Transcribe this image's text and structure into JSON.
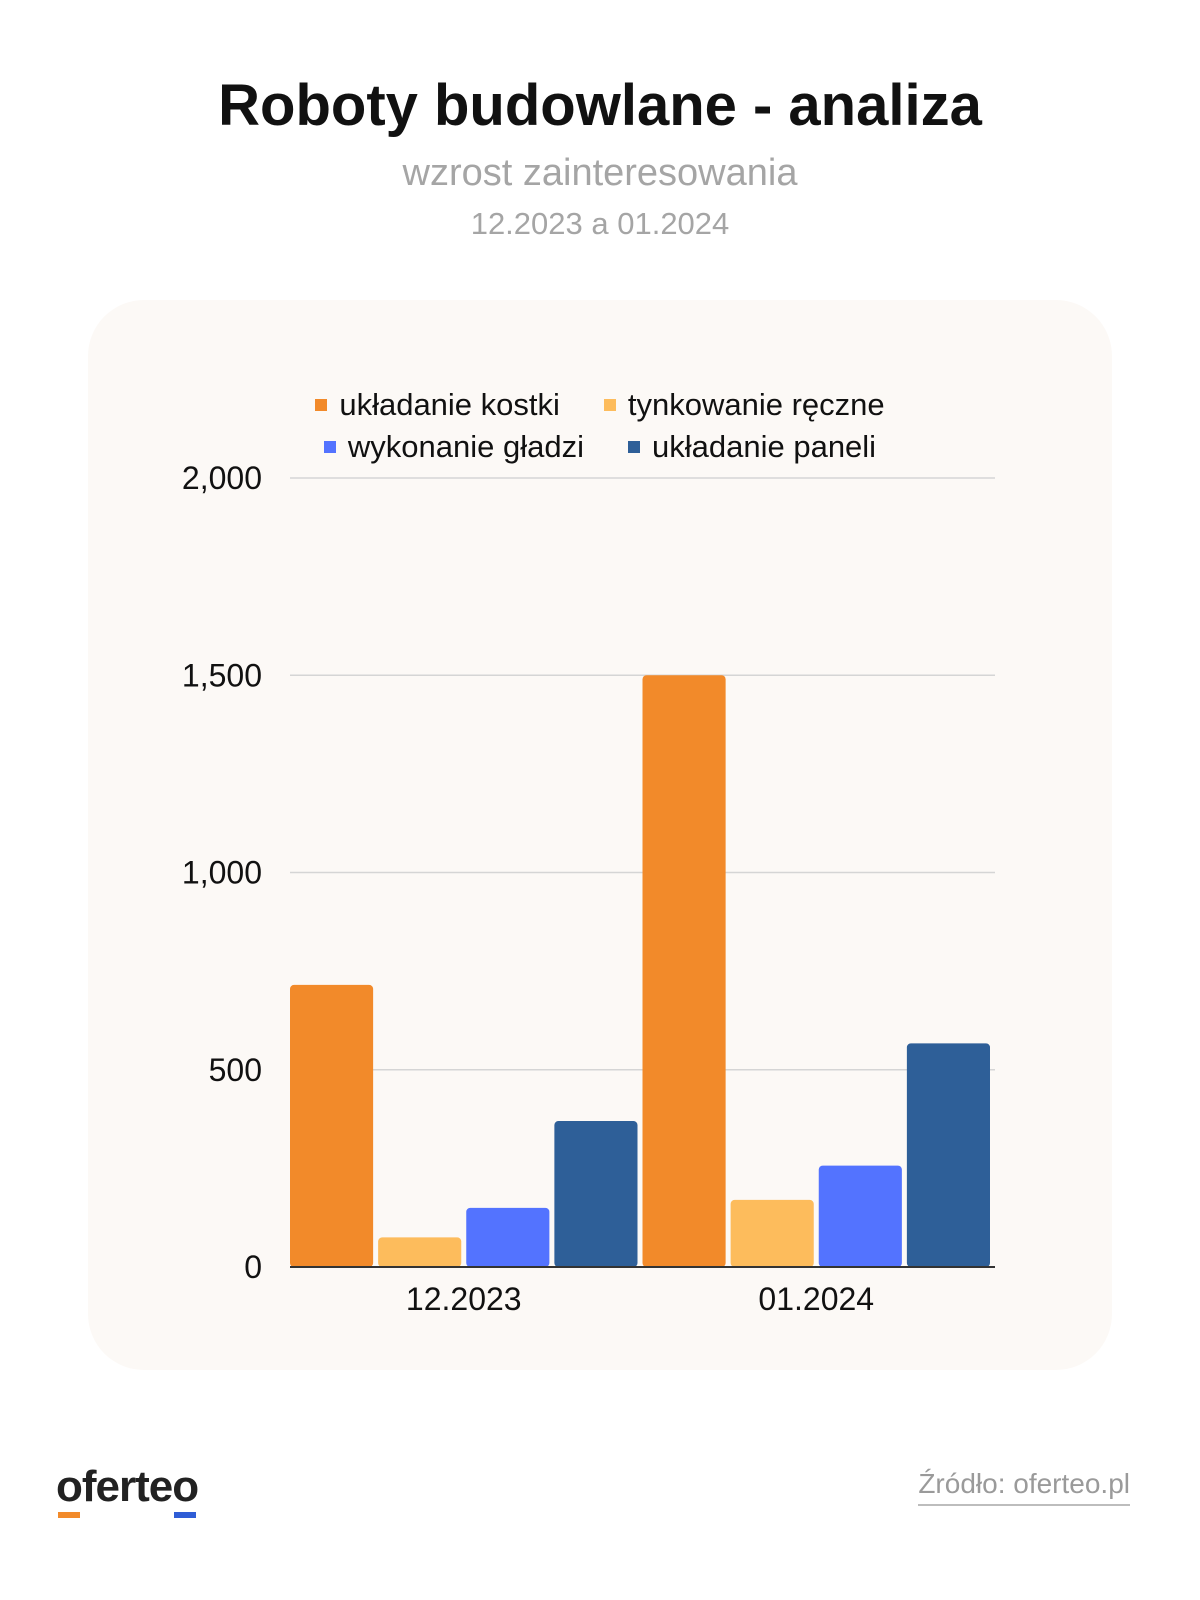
{
  "header": {
    "title": "Roboty budowlane - analiza",
    "subtitle": "wzrost zainteresowania",
    "period": "12.2023 a 01.2024"
  },
  "footer": {
    "logo_parts": [
      "",
      "o",
      "ferte",
      "o"
    ],
    "logo_text": "oferteo",
    "source": "Źródło: oferteo.pl"
  },
  "colors": {
    "kostka": "#f28a2a",
    "tynk": "#fdbc5c",
    "gladz": "#5373ff",
    "panele": "#2e5f98",
    "grid": "#d5d5d5",
    "text": "#111111"
  },
  "chart_data": {
    "type": "bar",
    "categories": [
      "12.2023",
      "01.2024"
    ],
    "series": [
      {
        "name": "układanie kostki",
        "values": [
          715,
          1500
        ]
      },
      {
        "name": "tynkowanie ręczne",
        "values": [
          75,
          170
        ]
      },
      {
        "name": "wykonanie gładzi",
        "values": [
          150,
          257
        ]
      },
      {
        "name": "układanie paneli",
        "values": [
          370,
          567
        ]
      }
    ],
    "yticks": [
      "0",
      "500",
      "1,000",
      "1,500",
      "2,000"
    ],
    "ytick_values": [
      0,
      500,
      1000,
      1500,
      2000
    ],
    "ylim": [
      0,
      2000
    ],
    "grid": true,
    "legend_position": "top-center"
  }
}
